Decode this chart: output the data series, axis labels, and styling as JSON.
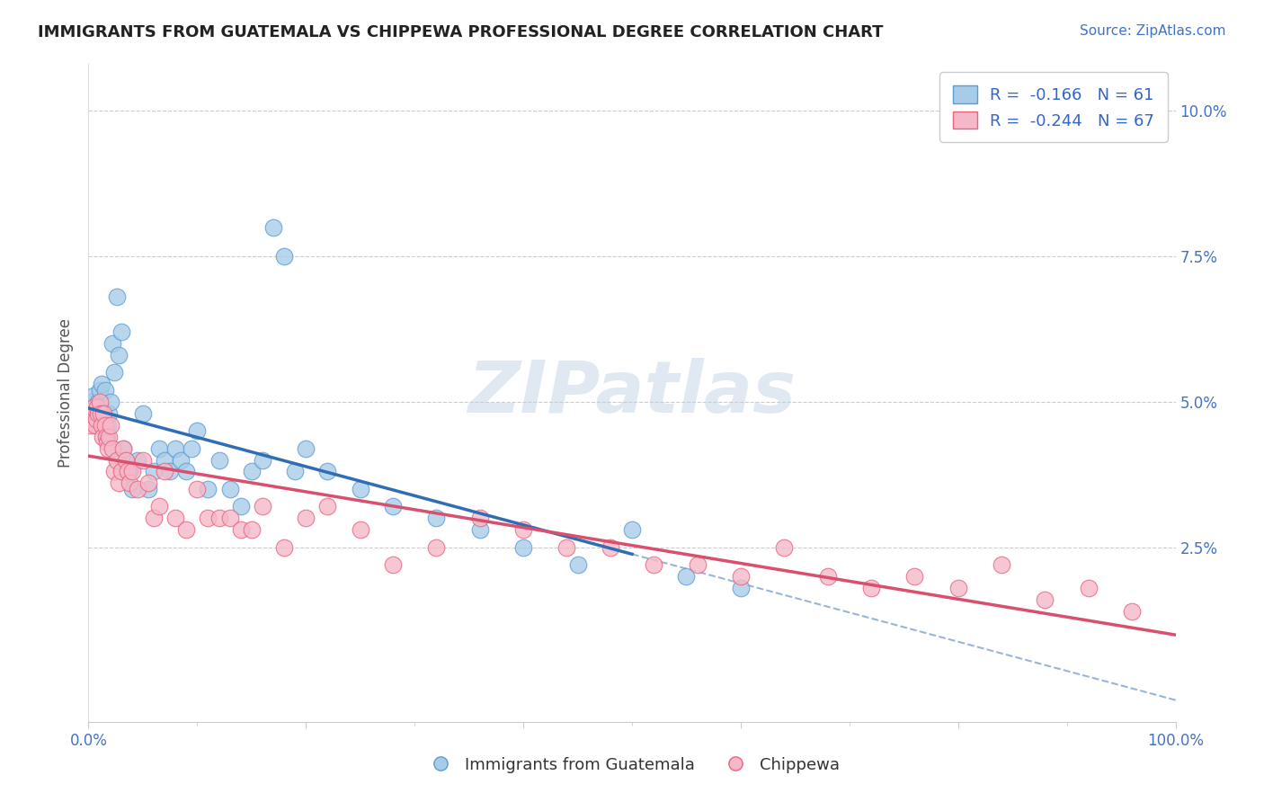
{
  "title": "IMMIGRANTS FROM GUATEMALA VS CHIPPEWA PROFESSIONAL DEGREE CORRELATION CHART",
  "source_text": "Source: ZipAtlas.com",
  "ylabel": "Professional Degree",
  "ytick_labels": [
    "2.5%",
    "5.0%",
    "7.5%",
    "10.0%"
  ],
  "ytick_values": [
    0.025,
    0.05,
    0.075,
    0.1
  ],
  "xlim": [
    0.0,
    1.0
  ],
  "ylim": [
    -0.005,
    0.108
  ],
  "watermark": "ZIPatlas",
  "blue_color": "#a8cce8",
  "pink_color": "#f5b8c8",
  "blue_edge_color": "#5b9bd5",
  "pink_edge_color": "#e8637d",
  "blue_line_color": "#2f6db5",
  "pink_line_color": "#d94f6e",
  "dash_line_color": "#9ab5d4",
  "background_color": "#ffffff",
  "grid_color": "#cccccc",
  "title_color": "#222222",
  "axis_label_color": "#4472c4",
  "legend_label1": "Immigrants from Guatemala",
  "legend_label2": "Chippewa",
  "guatemala_x": [
    0.002,
    0.003,
    0.004,
    0.005,
    0.006,
    0.007,
    0.008,
    0.009,
    0.01,
    0.011,
    0.012,
    0.013,
    0.014,
    0.015,
    0.016,
    0.017,
    0.018,
    0.019,
    0.02,
    0.022,
    0.024,
    0.026,
    0.028,
    0.03,
    0.032,
    0.034,
    0.036,
    0.038,
    0.04,
    0.045,
    0.05,
    0.055,
    0.06,
    0.065,
    0.07,
    0.075,
    0.08,
    0.085,
    0.09,
    0.095,
    0.1,
    0.11,
    0.12,
    0.13,
    0.14,
    0.15,
    0.16,
    0.17,
    0.18,
    0.19,
    0.2,
    0.22,
    0.25,
    0.28,
    0.32,
    0.36,
    0.4,
    0.45,
    0.5,
    0.55,
    0.6
  ],
  "guatemala_y": [
    0.048,
    0.05,
    0.049,
    0.051,
    0.047,
    0.046,
    0.048,
    0.05,
    0.052,
    0.049,
    0.053,
    0.048,
    0.047,
    0.052,
    0.045,
    0.044,
    0.046,
    0.048,
    0.05,
    0.06,
    0.055,
    0.068,
    0.058,
    0.062,
    0.042,
    0.04,
    0.038,
    0.038,
    0.035,
    0.04,
    0.048,
    0.035,
    0.038,
    0.042,
    0.04,
    0.038,
    0.042,
    0.04,
    0.038,
    0.042,
    0.045,
    0.035,
    0.04,
    0.035,
    0.032,
    0.038,
    0.04,
    0.08,
    0.075,
    0.038,
    0.042,
    0.038,
    0.035,
    0.032,
    0.03,
    0.028,
    0.025,
    0.022,
    0.028,
    0.02,
    0.018
  ],
  "chippewa_x": [
    0.002,
    0.003,
    0.004,
    0.005,
    0.006,
    0.007,
    0.008,
    0.009,
    0.01,
    0.011,
    0.012,
    0.013,
    0.014,
    0.015,
    0.016,
    0.017,
    0.018,
    0.019,
    0.02,
    0.022,
    0.024,
    0.026,
    0.028,
    0.03,
    0.032,
    0.034,
    0.036,
    0.038,
    0.04,
    0.045,
    0.05,
    0.055,
    0.06,
    0.065,
    0.07,
    0.08,
    0.09,
    0.1,
    0.11,
    0.12,
    0.13,
    0.14,
    0.15,
    0.16,
    0.18,
    0.2,
    0.22,
    0.25,
    0.28,
    0.32,
    0.36,
    0.4,
    0.44,
    0.48,
    0.52,
    0.56,
    0.6,
    0.64,
    0.68,
    0.72,
    0.76,
    0.8,
    0.84,
    0.88,
    0.92,
    0.96
  ],
  "chippewa_y": [
    0.046,
    0.048,
    0.047,
    0.049,
    0.046,
    0.047,
    0.049,
    0.048,
    0.05,
    0.048,
    0.046,
    0.044,
    0.048,
    0.046,
    0.044,
    0.043,
    0.042,
    0.044,
    0.046,
    0.042,
    0.038,
    0.04,
    0.036,
    0.038,
    0.042,
    0.04,
    0.038,
    0.036,
    0.038,
    0.035,
    0.04,
    0.036,
    0.03,
    0.032,
    0.038,
    0.03,
    0.028,
    0.035,
    0.03,
    0.03,
    0.03,
    0.028,
    0.028,
    0.032,
    0.025,
    0.03,
    0.032,
    0.028,
    0.022,
    0.025,
    0.03,
    0.028,
    0.025,
    0.025,
    0.022,
    0.022,
    0.02,
    0.025,
    0.02,
    0.018,
    0.02,
    0.018,
    0.022,
    0.016,
    0.018,
    0.014
  ],
  "blue_line_x_end": 0.5,
  "dash_line_x_start": 0.5,
  "dash_line_x_end": 1.0
}
